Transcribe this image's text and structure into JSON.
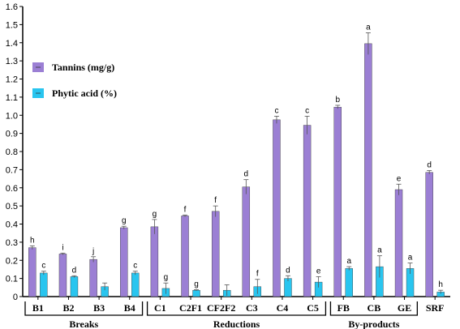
{
  "chart_data": {
    "type": "bar",
    "title": "",
    "xlabel": "",
    "ylabel": "",
    "ylim": [
      0,
      1.6
    ],
    "yticks": [
      "0",
      "0.1",
      "0.2",
      "0.3",
      "0.4",
      "0.5",
      "0.6",
      "0.7",
      "0.8",
      "0.9",
      "1.0",
      "1.1",
      "1.2",
      "1.3",
      "1.4",
      "1.5",
      "1.6"
    ],
    "categories": [
      "B1",
      "B2",
      "B3",
      "B4",
      "C1",
      "C2F1",
      "CF2F2",
      "C3",
      "C4",
      "C5",
      "FB",
      "CB",
      "GE",
      "SRF"
    ],
    "series": [
      {
        "name": "Tannins (mg/g)",
        "color": "#9b7fd4",
        "values": [
          0.27,
          0.235,
          0.205,
          0.38,
          0.385,
          0.445,
          0.47,
          0.605,
          0.975,
          0.945,
          1.045,
          1.395,
          0.59,
          0.685
        ],
        "errors": [
          0.01,
          0.005,
          0.015,
          0.008,
          0.04,
          0.005,
          0.03,
          0.04,
          0.02,
          0.05,
          0.01,
          0.06,
          0.03,
          0.01
        ],
        "letters": [
          "h",
          "i",
          "j",
          "g",
          "g",
          "f",
          "f",
          "d",
          "c",
          "c",
          "b",
          "a",
          "e",
          "d"
        ]
      },
      {
        "name": "Phytic acid (%)",
        "color": "#29c5ef",
        "values": [
          0.13,
          0.11,
          0.055,
          0.13,
          0.045,
          0.035,
          0.035,
          0.055,
          0.1,
          0.08,
          0.155,
          0.165,
          0.155,
          0.025
        ],
        "errors": [
          0.01,
          0.005,
          0.02,
          0.01,
          0.03,
          0.003,
          0.03,
          0.04,
          0.015,
          0.03,
          0.01,
          0.06,
          0.03,
          0.01
        ],
        "letters": [
          "c",
          "d",
          "",
          "c",
          "g",
          "g",
          "",
          "f",
          "d",
          "e",
          "a",
          "a",
          "a",
          "h"
        ]
      }
    ],
    "groups": [
      {
        "label": "Breaks",
        "from": 0,
        "to": 3
      },
      {
        "label": "Reductions",
        "from": 4,
        "to": 9
      },
      {
        "label": "By-products",
        "from": 10,
        "to": 12
      }
    ],
    "legend_position": "top-left",
    "grid": false
  }
}
